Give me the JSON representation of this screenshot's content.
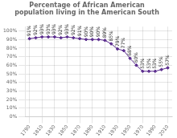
{
  "chart_data": {
    "type": "line",
    "title": "Percentage of African American\npopulation living in the American South",
    "x": [
      1790,
      1800,
      1810,
      1820,
      1830,
      1840,
      1850,
      1860,
      1870,
      1880,
      1890,
      1900,
      1910,
      1920,
      1930,
      1940,
      1950,
      1960,
      1970,
      1980,
      1990,
      2000,
      2010
    ],
    "values": [
      91,
      92,
      93,
      93,
      93,
      92,
      93,
      92,
      91,
      90,
      90,
      90,
      89,
      85,
      79,
      77,
      68,
      60,
      53,
      53,
      53,
      55,
      57
    ],
    "value_labels": [
      "91%",
      "92%",
      "93%",
      "93%",
      "93%",
      "92%",
      "93%",
      "92%",
      "91%",
      "90%",
      "90%",
      "90%",
      "89%",
      "85%",
      "79%",
      "77%",
      "68%",
      "60%",
      "53%",
      "53%",
      "53%",
      "55%",
      "57%"
    ],
    "data_labels": true,
    "color": "#5B2D8E",
    "marker": "diamond",
    "xlim": [
      1783,
      2017
    ],
    "xticks": [
      1790,
      1810,
      1830,
      1850,
      1870,
      1890,
      1910,
      1930,
      1950,
      1970,
      1990,
      2010
    ],
    "ylim": [
      0,
      105
    ],
    "yticks": [
      {
        "value": 0,
        "label": "0%"
      },
      {
        "value": 10,
        "label": "10%"
      },
      {
        "value": 20,
        "label": "20%"
      },
      {
        "value": 30,
        "label": "30%"
      },
      {
        "value": 40,
        "label": "40%"
      },
      {
        "value": 50,
        "label": "50%"
      },
      {
        "value": 60,
        "label": "60%"
      },
      {
        "value": 70,
        "label": "70%"
      },
      {
        "value": 80,
        "label": "80%"
      },
      {
        "value": 90,
        "label": "90%"
      },
      {
        "value": 100,
        "label": "100%"
      }
    ],
    "grid": true
  }
}
